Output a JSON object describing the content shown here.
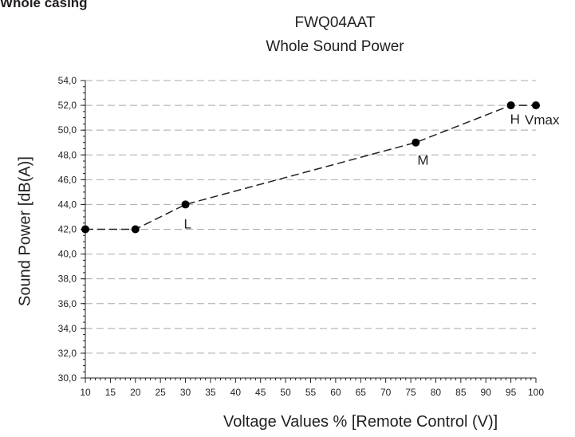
{
  "page": {
    "header": "Whole casing"
  },
  "chart_data": {
    "type": "line",
    "title": "FWQ04AAT",
    "subtitle": "Whole Sound Power",
    "xlabel": "Voltage Values % [Remote Control (V)]",
    "ylabel": "Sound Power [dB(A)]",
    "xlim": [
      10,
      100
    ],
    "ylim": [
      30,
      54
    ],
    "x_ticks": [
      "10",
      "15",
      "20",
      "25",
      "30",
      "35",
      "40",
      "45",
      "50",
      "55",
      "60",
      "65",
      "70",
      "75",
      "80",
      "85",
      "90",
      "95",
      "100"
    ],
    "y_ticks": [
      "30,0",
      "32,0",
      "34,0",
      "36,0",
      "38,0",
      "40,0",
      "42,0",
      "44,0",
      "46,0",
      "48,0",
      "50,0",
      "52,0",
      "54,0"
    ],
    "grid": "horizontal dashed",
    "line_style": "dashed",
    "points": [
      {
        "x": 10,
        "y": 42,
        "label": ""
      },
      {
        "x": 20,
        "y": 42,
        "label": ""
      },
      {
        "x": 30,
        "y": 44,
        "label": "L"
      },
      {
        "x": 76,
        "y": 49,
        "label": "M"
      },
      {
        "x": 95,
        "y": 52,
        "label": "H"
      },
      {
        "x": 100,
        "y": 52,
        "label": "Vmax"
      }
    ]
  }
}
